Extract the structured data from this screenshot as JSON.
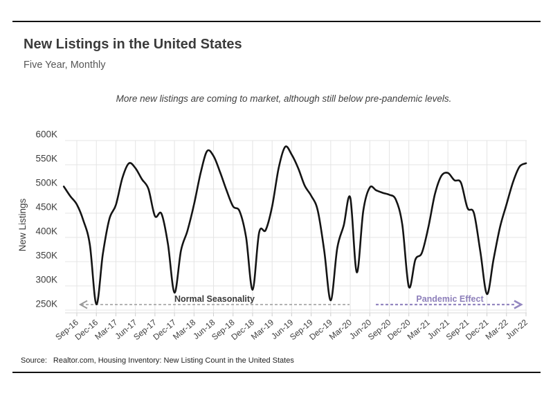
{
  "page": {
    "title": "New Listings in the United States",
    "subtitle": "Five Year, Monthly",
    "note": "More new listings are coming to market, although still below pre-pandemic levels.",
    "source_label": "Source:",
    "source_text": "Realtor.com, Housing Inventory: New Listing Count in the United States"
  },
  "colors": {
    "line": "#141414",
    "grid": "#e4e4e4",
    "axis": "#d9d9d9",
    "tick_text": "#3e3e3e",
    "normal_arrow": "#9a9a9a",
    "normal_text": "#3a3a3a",
    "pandemic_arrow": "#9487c0",
    "pandemic_text": "#8d7fba"
  },
  "chart_data": {
    "type": "line",
    "title": "New Listings in the United States",
    "subtitle": "Five Year, Monthly",
    "note": "More new listings are coming to market, although still below pre-pandemic levels.",
    "ylabel": "New Listings",
    "unit": "K",
    "grid": true,
    "legend": "none",
    "ylim": [
      240,
      610
    ],
    "y_ticks": [
      600,
      550,
      500,
      450,
      400,
      350,
      300,
      250
    ],
    "x_tick_labels": [
      "Sep-16",
      "Dec-16",
      "Mar-17",
      "Jun-17",
      "Sep-17",
      "Dec-17",
      "Mar-18",
      "Jun-18",
      "Sep-18",
      "Dec-18",
      "Mar-19",
      "Jun-19",
      "Sep-19",
      "Dec-19",
      "Mar-20",
      "Jun-20",
      "Sep-20",
      "Dec-20",
      "Mar-21",
      "Jun-21",
      "Sep-21",
      "Dec-21",
      "Mar-22",
      "Jun-22"
    ],
    "x": [
      "Jul-16",
      "Aug-16",
      "Sep-16",
      "Oct-16",
      "Nov-16",
      "Dec-16",
      "Jan-17",
      "Feb-17",
      "Mar-17",
      "Apr-17",
      "May-17",
      "Jun-17",
      "Jul-17",
      "Aug-17",
      "Sep-17",
      "Oct-17",
      "Nov-17",
      "Dec-17",
      "Jan-18",
      "Feb-18",
      "Mar-18",
      "Apr-18",
      "May-18",
      "Jun-18",
      "Jul-18",
      "Aug-18",
      "Sep-18",
      "Oct-18",
      "Nov-18",
      "Dec-18",
      "Jan-19",
      "Feb-19",
      "Mar-19",
      "Apr-19",
      "May-19",
      "Jun-19",
      "Jul-19",
      "Aug-19",
      "Sep-19",
      "Oct-19",
      "Nov-19",
      "Dec-19",
      "Jan-20",
      "Feb-20",
      "Mar-20",
      "Apr-20",
      "May-20",
      "Jun-20",
      "Jul-20",
      "Aug-20",
      "Sep-20",
      "Oct-20",
      "Nov-20",
      "Dec-20",
      "Jan-21",
      "Feb-21",
      "Mar-21",
      "Apr-21",
      "May-21",
      "Jun-21",
      "Jul-21",
      "Aug-21",
      "Sep-21",
      "Oct-21",
      "Nov-21",
      "Dec-21",
      "Jan-22",
      "Feb-22",
      "Mar-22",
      "Apr-22",
      "May-22",
      "Jun-22"
    ],
    "values": [
      505,
      485,
      468,
      435,
      385,
      262,
      366,
      438,
      467,
      523,
      553,
      543,
      520,
      500,
      444,
      449,
      386,
      286,
      373,
      414,
      468,
      532,
      578,
      568,
      535,
      497,
      464,
      454,
      400,
      292,
      410,
      415,
      464,
      543,
      587,
      571,
      543,
      507,
      486,
      456,
      373,
      270,
      378,
      425,
      482,
      328,
      455,
      503,
      497,
      492,
      488,
      478,
      426,
      298,
      354,
      368,
      421,
      489,
      527,
      533,
      518,
      513,
      461,
      450,
      369,
      283,
      354,
      421,
      468,
      514,
      546,
      553
    ],
    "annotations": [
      {
        "id": "normal-seasonality",
        "text": "Normal Seasonality",
        "direction": "left"
      },
      {
        "id": "pandemic-effect",
        "text": "Pandemic Effect",
        "direction": "right"
      }
    ],
    "source": "Source: Realtor.com, Housing Inventory: New Listing Count in the United States"
  }
}
